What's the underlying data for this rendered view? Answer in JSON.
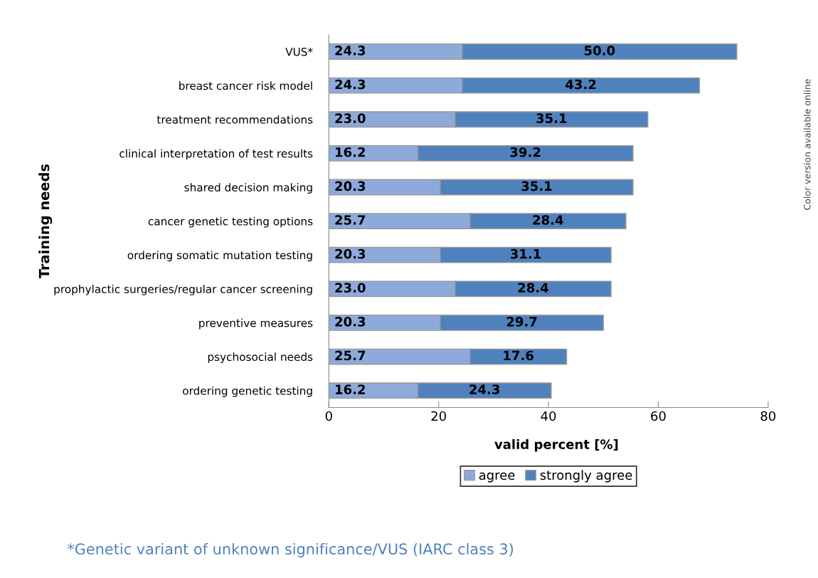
{
  "chart_data": {
    "type": "bar",
    "orientation": "horizontal",
    "stacked": true,
    "ylabel": "Training needs",
    "xlabel": "valid percent [%]",
    "categories": [
      "VUS*",
      "breast cancer risk model",
      "treatment recommendations",
      "clinical interpretation of test results",
      "shared decision making",
      "cancer genetic testing options",
      "ordering somatic mutation testing",
      "prophylactic surgeries/regular cancer screening",
      "preventive measures",
      "psychosocial needs",
      "ordering genetic testing"
    ],
    "series": [
      {
        "name": "agree",
        "color": "#8eaadb",
        "values": [
          24.3,
          24.3,
          23,
          16.2,
          20.3,
          25.7,
          20.3,
          23,
          20.3,
          25.7,
          16.2
        ],
        "value_labels": [
          "24.3",
          "24.3",
          "23.0",
          "16.2",
          "20.3",
          "25.7",
          "20.3",
          "23.0",
          "20.3",
          "25.7",
          "16.2"
        ]
      },
      {
        "name": "strongly agree",
        "color": "#4f81bd",
        "values": [
          50,
          43.2,
          35.1,
          39.2,
          35.1,
          28.4,
          31.1,
          28.4,
          29.7,
          17.6,
          24.3
        ],
        "value_labels": [
          "50.0",
          "43.2",
          "35.1",
          "39.2",
          "35.1",
          "28.4",
          "31.1",
          "28.4",
          "29.7",
          "17.6",
          "24.3"
        ]
      }
    ],
    "xlim": [
      0,
      80
    ],
    "xticks": [
      0,
      20,
      40,
      60,
      80
    ],
    "grid": false,
    "legend": "bottom",
    "annotations": [
      "*Genetic variant of unknown significance/VUS (IARC class 3)",
      "Color version available online"
    ]
  }
}
